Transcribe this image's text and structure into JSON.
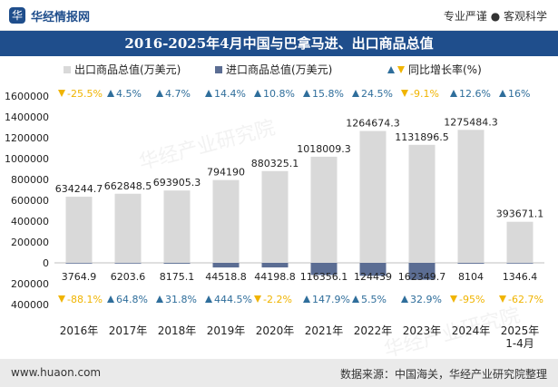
{
  "header": {
    "logo_text": "华",
    "brand": "华经情报网",
    "slogan": "专业严谨 ● 客观科学"
  },
  "footer": {
    "url": "www.huaon.com",
    "source": "数据来源：中国海关，华经产业研究院整理"
  },
  "watermark": "华经产业研究院",
  "chart_data": {
    "type": "bar",
    "title": "2016-2025年4月中国与巴拿马进、出口商品总值",
    "categories": [
      "2016年",
      "2017年",
      "2018年",
      "2019年",
      "2020年",
      "2021年",
      "2022年",
      "2023年",
      "2024年",
      "2025年\n1-4月"
    ],
    "series": [
      {
        "name": "出口商品总值(万美元)",
        "color": "#d9d9d9",
        "values": [
          634244.7,
          662848.5,
          693905.3,
          794190,
          880325.1,
          1018009.3,
          1264674.3,
          1131896.5,
          1275484.3,
          393671.1
        ],
        "labels": [
          "634244.7",
          "662848.5",
          "693905.3",
          "794190",
          "880325.1",
          "1018009.3",
          "1264674.3",
          "1131896.5",
          "1275484.3",
          "393671.1"
        ]
      },
      {
        "name": "进口商品总值(万美元)",
        "color": "#5b6d93",
        "values": [
          -3764.9,
          -6203.6,
          -8175.1,
          -44518.8,
          -44198.8,
          -116356.1,
          -124439,
          -162349.7,
          -8104,
          -1346.4
        ],
        "labels": [
          "3764.9",
          "6203.6",
          "8175.1",
          "44518.8",
          "44198.8",
          "116356.1",
          "124439",
          "162349.7",
          "8104",
          "1346.4"
        ]
      }
    ],
    "growth_legend": "同比增长率(%)",
    "export_growth": [
      "-25.5%",
      "4.5%",
      "4.7%",
      "14.4%",
      "10.8%",
      "15.8%",
      "24.5%",
      "-9.1%",
      "12.6%",
      "16%"
    ],
    "import_growth": [
      "-88.1%",
      "64.8%",
      "31.8%",
      "444.5%",
      "-2.2%",
      "147.9%",
      "5.5%",
      "32.9%",
      "-95%",
      "-62.7%"
    ],
    "up_color": "#2f6e9b",
    "down_color": "#f0b400",
    "yticks": [
      1600000,
      1400000,
      1200000,
      1000000,
      800000,
      600000,
      400000,
      200000,
      0,
      -200000,
      -400000
    ],
    "ytick_labels": [
      "1600000",
      "1400000",
      "1200000",
      "1000000",
      "800000",
      "600000",
      "400000",
      "200000",
      "0",
      "200000",
      "400000"
    ],
    "ylim": [
      -400000,
      1600000
    ],
    "grid": false,
    "legend_position": "top"
  }
}
